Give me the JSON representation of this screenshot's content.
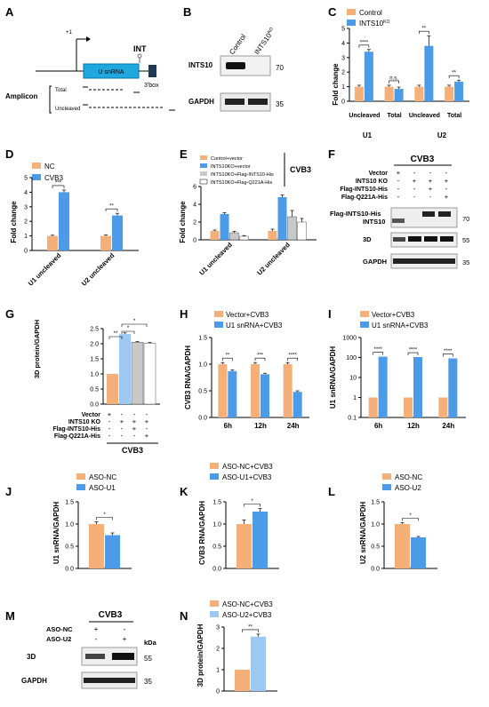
{
  "colors": {
    "orange": "#F4B078",
    "blue": "#4C9BE8",
    "gray": "#C8C8C8",
    "lightblue": "#9DC8F2",
    "white": "#FFFFFF"
  },
  "panelA": {
    "letter": "A",
    "plus1": "+1",
    "usnrna": "U snRNA",
    "int": "INT",
    "box": "3'box",
    "amplicon": "Amplicon",
    "total": "Total",
    "uncleaved": "Uncleaved"
  },
  "panelB": {
    "letter": "B",
    "col1": "Control",
    "col2": "INTS10",
    "col2sup": "KO",
    "row1": "INTS10",
    "row2": "GAPDH",
    "kda1": "70",
    "kda2": "35"
  },
  "panelC": {
    "letter": "C",
    "legend": [
      "Control",
      "INTS10"
    ],
    "legend2sup": "KO",
    "ylabel": "Fold change",
    "yticks": [
      "0",
      "1",
      "2",
      "3",
      "4",
      "5"
    ],
    "xcats": [
      "Uncleaved",
      "Total",
      "Uncleaved",
      "Total"
    ],
    "groups": [
      "U1",
      "U2"
    ],
    "sig": [
      "****",
      "n.s.",
      "**",
      "**"
    ],
    "chart_data": {
      "type": "bar",
      "categories": [
        "U1 Uncleaved",
        "U1 Total",
        "U2 Uncleaved",
        "U2 Total"
      ],
      "series": [
        {
          "name": "Control",
          "values": [
            1,
            1,
            1,
            1
          ]
        },
        {
          "name": "INTS10KO",
          "values": [
            3.4,
            0.85,
            3.8,
            1.35
          ]
        }
      ],
      "ylim": [
        0,
        5
      ]
    }
  },
  "panelD": {
    "letter": "D",
    "legend": [
      "NC",
      "CVB3"
    ],
    "ylabel": "Fold change",
    "yticks": [
      "0",
      "1",
      "2",
      "3",
      "4",
      "5"
    ],
    "xcats": [
      "U1 uncleaved",
      "U2 uncleaved"
    ],
    "sig": [
      "***",
      "**"
    ],
    "chart_data": {
      "type": "bar",
      "categories": [
        "U1 uncleaved",
        "U2 uncleaved"
      ],
      "series": [
        {
          "name": "NC",
          "values": [
            1,
            1
          ]
        },
        {
          "name": "CVB3",
          "values": [
            4.0,
            2.4
          ]
        }
      ],
      "ylim": [
        0,
        5
      ]
    }
  },
  "panelE": {
    "letter": "E",
    "legend": [
      "Control+vector",
      "INTS10KO+vector",
      "INTS10KO+Flag-INTS10-His",
      "INTS10KO+Flag-Q221A-His"
    ],
    "side": "CVB3",
    "ylabel": "Fold change",
    "yticks": [
      "0",
      "2",
      "4",
      "6"
    ],
    "xcats": [
      "U1 uncleaved",
      "U2 uncleaved"
    ],
    "chart_data": {
      "type": "bar",
      "categories": [
        "U1 uncleaved",
        "U2 uncleaved"
      ],
      "series": [
        {
          "name": "Control+vector",
          "values": [
            1,
            1
          ]
        },
        {
          "name": "INTS10KO+vector",
          "values": [
            2.9,
            4.8
          ]
        },
        {
          "name": "INTS10KO+Flag-INTS10-His",
          "values": [
            0.8,
            2.6
          ]
        },
        {
          "name": "INTS10KO+Flag-Q221A-His",
          "values": [
            0.4,
            2.0
          ]
        }
      ],
      "ylim": [
        0,
        6
      ]
    }
  },
  "panelF": {
    "letter": "F",
    "title": "CVB3",
    "rows": [
      "Vector",
      "INTS10 KO",
      "Flag-INTS10-His",
      "Flag-Q221A-His"
    ],
    "signs": [
      [
        "+",
        "-",
        "-",
        "-"
      ],
      [
        "-",
        "+",
        "+",
        "+"
      ],
      [
        "-",
        "-",
        "+",
        "-"
      ],
      [
        "-",
        "-",
        "-",
        "+"
      ]
    ],
    "blots": [
      "Flag-INTS10-His",
      "INTS10",
      "3D",
      "GAPDH"
    ],
    "kda": [
      "70",
      "55",
      "35"
    ]
  },
  "panelG": {
    "letter": "G",
    "ylabel": "3D protein/GAPDH",
    "yticks": [
      "0.0",
      "0.5",
      "1.0",
      "1.5",
      "2.0",
      "2.5"
    ],
    "rows": [
      "Vector",
      "INTS10 KO",
      "Flag-INTS10-His",
      "Flag-Q221A-His"
    ],
    "signs": [
      [
        "+",
        "-",
        "-",
        "-"
      ],
      [
        "-",
        "+",
        "+",
        "+"
      ],
      [
        "-",
        "-",
        "+",
        "-"
      ],
      [
        "-",
        "-",
        "-",
        "+"
      ]
    ],
    "bottom": "CVB3",
    "sig": [
      "**",
      "*",
      "*"
    ],
    "chart_data": {
      "type": "bar",
      "categories": [
        "Vector",
        "INTS10 KO",
        "INTS10 KO+Flag-INTS10-His",
        "INTS10 KO+Flag-Q221A-His"
      ],
      "values": [
        1.0,
        2.32,
        2.05,
        2.02
      ],
      "ylim": [
        0,
        2.5
      ]
    }
  },
  "panelH": {
    "letter": "H",
    "legend": [
      "Vector+CVB3",
      "U1 snRNA+CVB3"
    ],
    "ylabel": "CVB3 RNA/GAPDH",
    "yticks": [
      "0.0",
      "0.5",
      "1.0",
      "1.5"
    ],
    "xcats": [
      "6h",
      "12h",
      "24h"
    ],
    "sig": [
      "**",
      "***",
      "****"
    ],
    "chart_data": {
      "type": "bar",
      "categories": [
        "6h",
        "12h",
        "24h"
      ],
      "series": [
        {
          "name": "Vector+CVB3",
          "values": [
            1,
            1,
            1
          ]
        },
        {
          "name": "U1 snRNA+CVB3",
          "values": [
            0.87,
            0.81,
            0.48
          ]
        }
      ],
      "ylim": [
        0,
        1.5
      ]
    }
  },
  "panelI": {
    "letter": "I",
    "legend": [
      "Vector+CVB3",
      "U1 snRNA+CVB3"
    ],
    "ylabel": "U1 snRNA/GAPDH",
    "yticks": [
      "0.1",
      "1",
      "10",
      "100",
      "1000"
    ],
    "xcats": [
      "6h",
      "12h",
      "24h"
    ],
    "sig": [
      "****",
      "****",
      "****"
    ],
    "chart_data": {
      "type": "bar",
      "categories": [
        "6h",
        "12h",
        "24h"
      ],
      "series": [
        {
          "name": "Vector+CVB3",
          "values": [
            1,
            1,
            1
          ]
        },
        {
          "name": "U1 snRNA+CVB3",
          "values": [
            110,
            105,
            90
          ]
        }
      ],
      "yscale": "log",
      "ylim": [
        0.1,
        1000
      ]
    }
  },
  "panelJ": {
    "letter": "J",
    "legend": [
      "ASO-NC",
      "ASO-U1"
    ],
    "ylabel": "U1 snRNA/GAPDH",
    "yticks": [
      "0.0",
      "0.5",
      "1.0",
      "1.5"
    ],
    "sig": [
      "*"
    ],
    "chart_data": {
      "type": "bar",
      "categories": [
        "ASO-NC",
        "ASO-U1"
      ],
      "values": [
        1.0,
        0.75
      ],
      "ylim": [
        0,
        1.5
      ]
    }
  },
  "panelK": {
    "letter": "K",
    "legend": [
      "ASO-NC+CVB3",
      "ASO-U1+CVB3"
    ],
    "ylabel": "CVB3 RNA/GAPDH",
    "yticks": [
      "0.0",
      "0.5",
      "1.0",
      "1.5"
    ],
    "sig": [
      "*"
    ],
    "chart_data": {
      "type": "bar",
      "categories": [
        "ASO-NC+CVB3",
        "ASO-U1+CVB3"
      ],
      "values": [
        1.0,
        1.28
      ],
      "ylim": [
        0,
        1.5
      ]
    }
  },
  "panelL": {
    "letter": "L",
    "legend": [
      "ASO-NC",
      "ASO-U2"
    ],
    "ylabel": "U2 snRNA/GAPDH",
    "yticks": [
      "0.0",
      "0.5",
      "1.0",
      "1.5"
    ],
    "sig": [
      "*"
    ],
    "chart_data": {
      "type": "bar",
      "categories": [
        "ASO-NC",
        "ASO-U2"
      ],
      "values": [
        1.0,
        0.7
      ],
      "ylim": [
        0,
        1.5
      ]
    }
  },
  "panelM": {
    "letter": "M",
    "title": "CVB3",
    "rows": [
      "ASO-NC",
      "ASO-U2"
    ],
    "signs": [
      [
        "+",
        "-"
      ],
      [
        "-",
        "+"
      ]
    ],
    "kda": "kDa",
    "blots": [
      "3D",
      "GAPDH"
    ],
    "kdas": [
      "55",
      "35"
    ]
  },
  "panelN": {
    "letter": "N",
    "legend": [
      "ASO-NC+CVB3",
      "ASO-U2+CVB3"
    ],
    "ylabel": "3D protein/GAPDH",
    "yticks": [
      "0",
      "1",
      "2",
      "3"
    ],
    "sig": [
      "**"
    ],
    "chart_data": {
      "type": "bar",
      "categories": [
        "ASO-NC+CVB3",
        "ASO-U2+CVB3"
      ],
      "values": [
        1.0,
        2.55
      ],
      "ylim": [
        0,
        3
      ]
    }
  }
}
